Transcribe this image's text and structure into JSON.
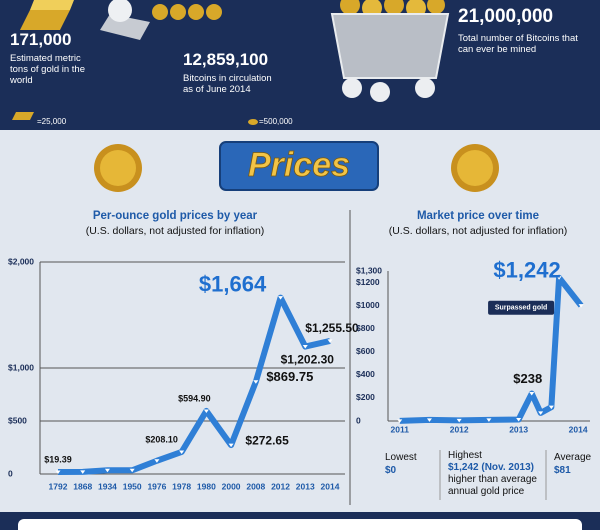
{
  "header": {
    "stats": [
      {
        "value": "171,000",
        "label": "Estimated metric tons of gold in the world"
      },
      {
        "value": "12,859,100",
        "label": "Bitcoins in circulation as of June 2014"
      },
      {
        "value": "21,000,000",
        "label": "Total number of Bitcoins that can ever be mined"
      }
    ],
    "legend": [
      "=25,000",
      "=500,000"
    ]
  },
  "banner": "Prices",
  "chart_data": [
    {
      "type": "line",
      "title": "Per-ounce gold prices by year",
      "subtitle": "(U.S. dollars, not adjusted for inflation)",
      "categories": [
        "1792",
        "1868",
        "1934",
        "1950",
        "1976",
        "1978",
        "1980",
        "2000",
        "2008",
        "2012",
        "2013",
        "2014"
      ],
      "values": [
        19.39,
        20,
        35,
        35,
        125,
        208.1,
        594.9,
        272.65,
        869.75,
        1664,
        1202.3,
        1255.5
      ],
      "value_labels": [
        "$19.39",
        null,
        null,
        null,
        null,
        "$208.10",
        "$594.90",
        "$272.65",
        "$869.75",
        "$1,664",
        "$1,202.30",
        "$1,255.50"
      ],
      "color": "#2f7fd6",
      "ylim": [
        0,
        2000
      ],
      "yticks": [
        0,
        {
          "value": 500,
          "label": "$500"
        },
        {
          "value": 1000,
          "label": "$1,000"
        },
        {
          "value": 2000,
          "label": "$2,000"
        }
      ],
      "grid": true
    },
    {
      "type": "line",
      "title": "Market price over time",
      "subtitle": "(U.S. dollars, not adjusted for inflation)",
      "x": [
        2011,
        2011.5,
        2012,
        2012.5,
        2013,
        2013.22,
        2013.37,
        2013.55,
        2013.68,
        2014.05
      ],
      "values": [
        1,
        10,
        5,
        10,
        13,
        238,
        70,
        120,
        1242,
        1000
      ],
      "value_labels": [
        null,
        null,
        null,
        null,
        null,
        "$238",
        null,
        null,
        "$1,242",
        null
      ],
      "annotation": "Surpassed gold",
      "color": "#2f7fd6",
      "xlim": [
        2010.5,
        2014.2
      ],
      "xticks": [
        2011,
        2012,
        2013,
        2014
      ],
      "ylim": [
        0,
        1300
      ],
      "yticks": [
        0,
        {
          "value": 200,
          "label": "$200"
        },
        {
          "value": 400,
          "label": "$400"
        },
        {
          "value": 600,
          "label": "$600"
        },
        {
          "value": 800,
          "label": "$800"
        },
        {
          "value": 1000,
          "label": "$1000"
        },
        {
          "value": 1200,
          "label": "$1200"
        },
        {
          "value": 1300,
          "label": "$1,300"
        }
      ],
      "grid": false
    }
  ],
  "stats": {
    "lowest": {
      "label": "Lowest",
      "value": "$0"
    },
    "highest": {
      "label": "Highest",
      "value": "$1,242 (Nov. 2013)",
      "note": "higher than average annual gold price"
    },
    "average": {
      "label": "Average",
      "value": "$81"
    }
  }
}
